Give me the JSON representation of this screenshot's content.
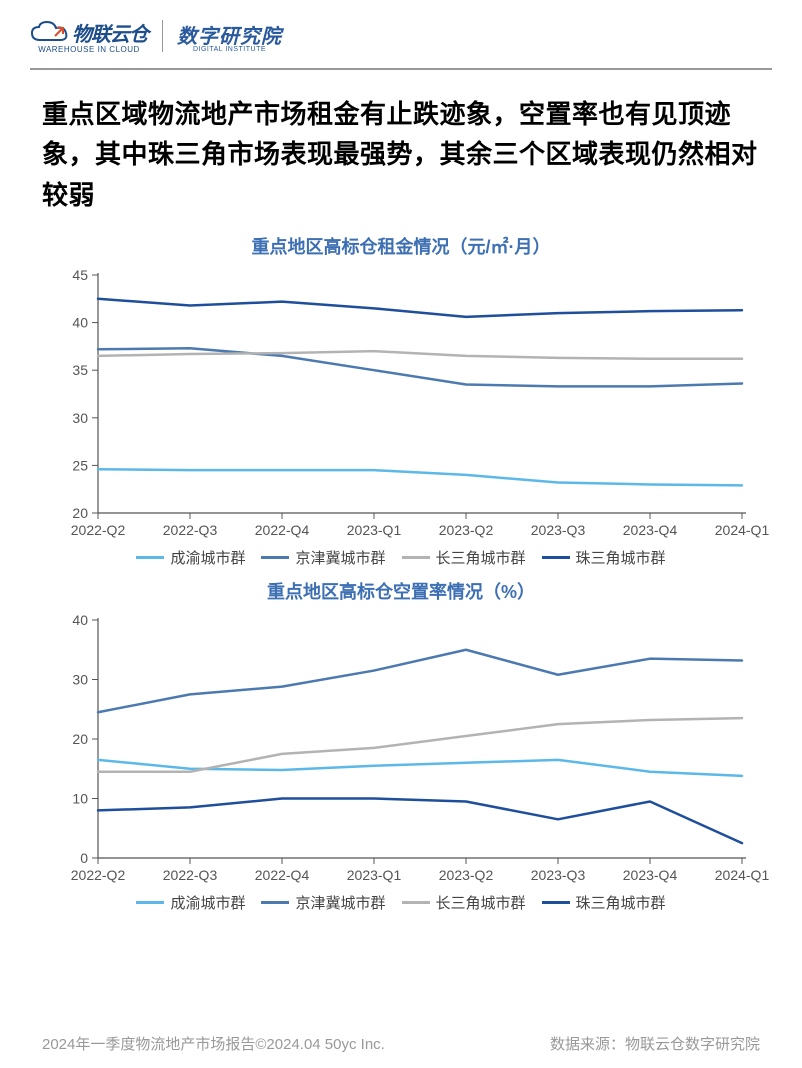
{
  "header": {
    "logo1_main": "物联云仓",
    "logo1_sub": "WAREHOUSE IN CLOUD",
    "logo2_main": "数字研究院",
    "logo2_sub": "DIGITAL INSTITUTE"
  },
  "title": "重点区域物流地产市场租金有止跌迹象，空置率也有见顶迹象，其中珠三角市场表现最强势，其余三个区域表现仍然相对较弱",
  "chart1": {
    "type": "line",
    "title": "重点地区高标仓租金情况（元/㎡·月）",
    "title_color": "#3d6fb3",
    "title_fontsize": 18,
    "categories": [
      "2022-Q2",
      "2022-Q3",
      "2022-Q4",
      "2023-Q1",
      "2023-Q2",
      "2023-Q3",
      "2023-Q4",
      "2024-Q1"
    ],
    "ylim": [
      20,
      45
    ],
    "ytick_step": 5,
    "yticks": [
      20,
      25,
      30,
      35,
      40,
      45
    ],
    "axis_fontsize": 14,
    "axis_color": "#555555",
    "line_width": 2.5,
    "background_color": "#ffffff",
    "series": [
      {
        "name": "成渝城市群",
        "color": "#5bb8e8",
        "values": [
          24.6,
          24.5,
          24.5,
          24.5,
          24.0,
          23.2,
          23.0,
          22.9
        ]
      },
      {
        "name": "京津冀城市群",
        "color": "#4c7ab0",
        "values": [
          37.2,
          37.3,
          36.5,
          35.0,
          33.5,
          33.3,
          33.3,
          33.6
        ]
      },
      {
        "name": "长三角城市群",
        "color": "#b3b3b3",
        "values": [
          36.5,
          36.7,
          36.8,
          37.0,
          36.5,
          36.3,
          36.2,
          36.2
        ]
      },
      {
        "name": "珠三角城市群",
        "color": "#1f4e9c",
        "values": [
          42.5,
          41.8,
          42.2,
          41.5,
          40.6,
          41.0,
          41.2,
          41.3
        ]
      }
    ]
  },
  "chart2": {
    "type": "line",
    "title": "重点地区高标仓空置率情况（%）",
    "title_color": "#3d6fb3",
    "title_fontsize": 18,
    "categories": [
      "2022-Q2",
      "2022-Q3",
      "2022-Q4",
      "2023-Q1",
      "2023-Q2",
      "2023-Q3",
      "2023-Q4",
      "2024-Q1"
    ],
    "ylim": [
      0,
      40
    ],
    "ytick_step": 10,
    "yticks": [
      0,
      10,
      20,
      30,
      40
    ],
    "axis_fontsize": 14,
    "axis_color": "#555555",
    "line_width": 2.5,
    "background_color": "#ffffff",
    "series": [
      {
        "name": "成渝城市群",
        "color": "#5bb8e8",
        "values": [
          16.5,
          15.0,
          14.8,
          15.5,
          16.0,
          16.5,
          14.5,
          13.8
        ]
      },
      {
        "name": "京津冀城市群",
        "color": "#4c7ab0",
        "values": [
          24.5,
          27.5,
          28.8,
          31.5,
          35.0,
          30.8,
          33.5,
          33.2
        ]
      },
      {
        "name": "长三角城市群",
        "color": "#b3b3b3",
        "values": [
          14.5,
          14.5,
          17.5,
          18.5,
          20.5,
          22.5,
          23.2,
          23.5
        ]
      },
      {
        "name": "珠三角城市群",
        "color": "#1f4e9c",
        "values": [
          8.0,
          8.5,
          10.0,
          10.0,
          9.5,
          6.5,
          9.5,
          2.5
        ]
      }
    ]
  },
  "legend_labels": [
    "成渝城市群",
    "京津冀城市群",
    "长三角城市群",
    "珠三角城市群"
  ],
  "legend_colors": [
    "#5bb8e8",
    "#4c7ab0",
    "#b3b3b3",
    "#1f4e9c"
  ],
  "footer": {
    "left": "2024年一季度物流地产市场报告©2024.04 50yc Inc.",
    "right": "数据来源：物联云仓数字研究院"
  }
}
